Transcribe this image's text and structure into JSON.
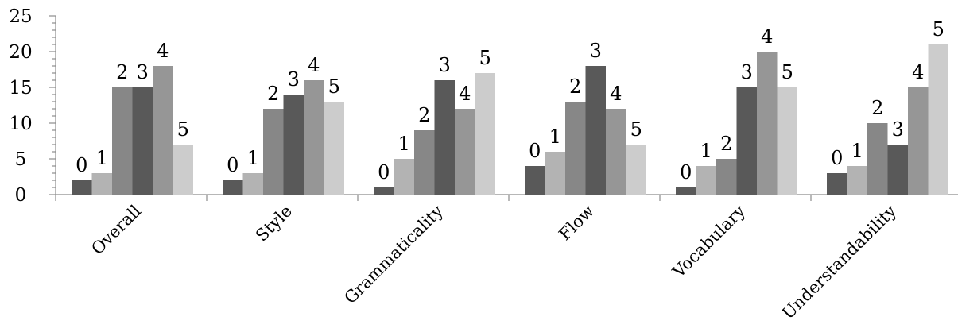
{
  "chart_data": {
    "type": "bar",
    "title": "",
    "xlabel": "",
    "ylabel": "",
    "categories": [
      "Overall",
      "Style",
      "Grammaticality",
      "Flow",
      "Vocabulary",
      "Understandability"
    ],
    "series": [
      {
        "label": "0",
        "color": "#595959",
        "values": [
          2,
          2,
          1,
          4,
          1,
          3
        ]
      },
      {
        "label": "1",
        "color": "#b3b3b3",
        "values": [
          3,
          3,
          5,
          6,
          4,
          4
        ]
      },
      {
        "label": "2",
        "color": "#878787",
        "values": [
          15,
          12,
          9,
          13,
          5,
          10
        ]
      },
      {
        "label": "3",
        "color": "#595959",
        "values": [
          15,
          14,
          16,
          18,
          15,
          7
        ]
      },
      {
        "label": "4",
        "color": "#969696",
        "values": [
          18,
          16,
          12,
          12,
          20,
          15
        ]
      },
      {
        "label": "5",
        "color": "#cccccc",
        "values": [
          7,
          13,
          17,
          7,
          15,
          21
        ]
      }
    ],
    "ylim": [
      0,
      25
    ],
    "yticks": [
      0,
      5,
      10,
      15,
      20,
      25
    ],
    "grid": false,
    "legend": "none"
  }
}
